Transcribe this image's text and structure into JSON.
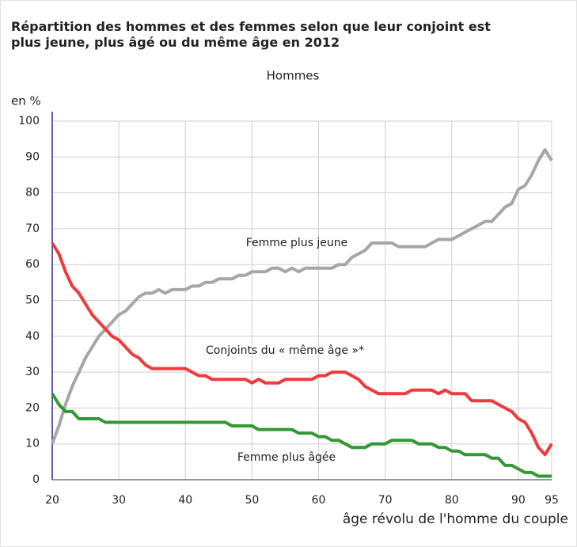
{
  "chart_data": {
    "type": "line",
    "title": "Répartition des hommes et des femmes selon que leur conjoint est plus jeune, plus âgé ou du même âge en 2012",
    "subtitle": "Hommes",
    "y_label": "en %",
    "x_label": "âge révolu de l'homme du couple",
    "x": [
      20,
      21,
      22,
      23,
      24,
      25,
      26,
      27,
      28,
      29,
      30,
      31,
      32,
      33,
      34,
      35,
      36,
      37,
      38,
      39,
      40,
      41,
      42,
      43,
      44,
      45,
      46,
      47,
      48,
      49,
      50,
      51,
      52,
      53,
      54,
      55,
      56,
      57,
      58,
      59,
      60,
      61,
      62,
      63,
      64,
      65,
      66,
      67,
      68,
      69,
      70,
      71,
      72,
      73,
      74,
      75,
      76,
      77,
      78,
      79,
      80,
      81,
      82,
      83,
      84,
      85,
      86,
      87,
      88,
      89,
      90,
      91,
      92,
      93,
      94,
      95
    ],
    "series": [
      {
        "name": "Femme plus jeune",
        "color": "#a6a6a6",
        "values": [
          10,
          15,
          21,
          26,
          30,
          34,
          37,
          40,
          42,
          44,
          46,
          47,
          49,
          51,
          52,
          52,
          53,
          52,
          53,
          53,
          53,
          54,
          54,
          55,
          55,
          56,
          56,
          56,
          57,
          57,
          58,
          58,
          58,
          59,
          59,
          58,
          59,
          58,
          59,
          59,
          59,
          59,
          59,
          60,
          60,
          62,
          63,
          64,
          66,
          66,
          66,
          66,
          65,
          65,
          65,
          65,
          65,
          66,
          67,
          67,
          67,
          68,
          69,
          70,
          71,
          72,
          72,
          74,
          76,
          77,
          81,
          82,
          85,
          89,
          92,
          89
        ]
      },
      {
        "name": "Conjoints du « même âge »*",
        "color": "#ee3b3b",
        "values": [
          66,
          63,
          58,
          54,
          52,
          49,
          46,
          44,
          42,
          40,
          39,
          37,
          35,
          34,
          32,
          31,
          31,
          31,
          31,
          31,
          31,
          30,
          29,
          29,
          28,
          28,
          28,
          28,
          28,
          28,
          27,
          28,
          27,
          27,
          27,
          28,
          28,
          28,
          28,
          28,
          29,
          29,
          30,
          30,
          30,
          29,
          28,
          26,
          25,
          24,
          24,
          24,
          24,
          24,
          25,
          25,
          25,
          25,
          24,
          25,
          24,
          24,
          24,
          22,
          22,
          22,
          22,
          21,
          20,
          19,
          17,
          16,
          13,
          9,
          7,
          10
        ]
      },
      {
        "name": "Femme plus âgée",
        "color": "#339933",
        "values": [
          24,
          21,
          19,
          19,
          17,
          17,
          17,
          17,
          16,
          16,
          16,
          16,
          16,
          16,
          16,
          16,
          16,
          16,
          16,
          16,
          16,
          16,
          16,
          16,
          16,
          16,
          16,
          15,
          15,
          15,
          15,
          14,
          14,
          14,
          14,
          14,
          14,
          13,
          13,
          13,
          12,
          12,
          11,
          11,
          10,
          9,
          9,
          9,
          10,
          10,
          10,
          11,
          11,
          11,
          11,
          10,
          10,
          10,
          9,
          9,
          8,
          8,
          7,
          7,
          7,
          7,
          6,
          6,
          4,
          4,
          3,
          2,
          2,
          1,
          1,
          1
        ]
      }
    ],
    "xlim": [
      20,
      95
    ],
    "xticks": [
      20,
      30,
      40,
      50,
      60,
      70,
      80,
      90,
      95
    ],
    "ylim": [
      0,
      100
    ],
    "yticks": [
      0,
      10,
      20,
      30,
      40,
      50,
      60,
      70,
      80,
      90,
      100
    ],
    "grid": true
  }
}
